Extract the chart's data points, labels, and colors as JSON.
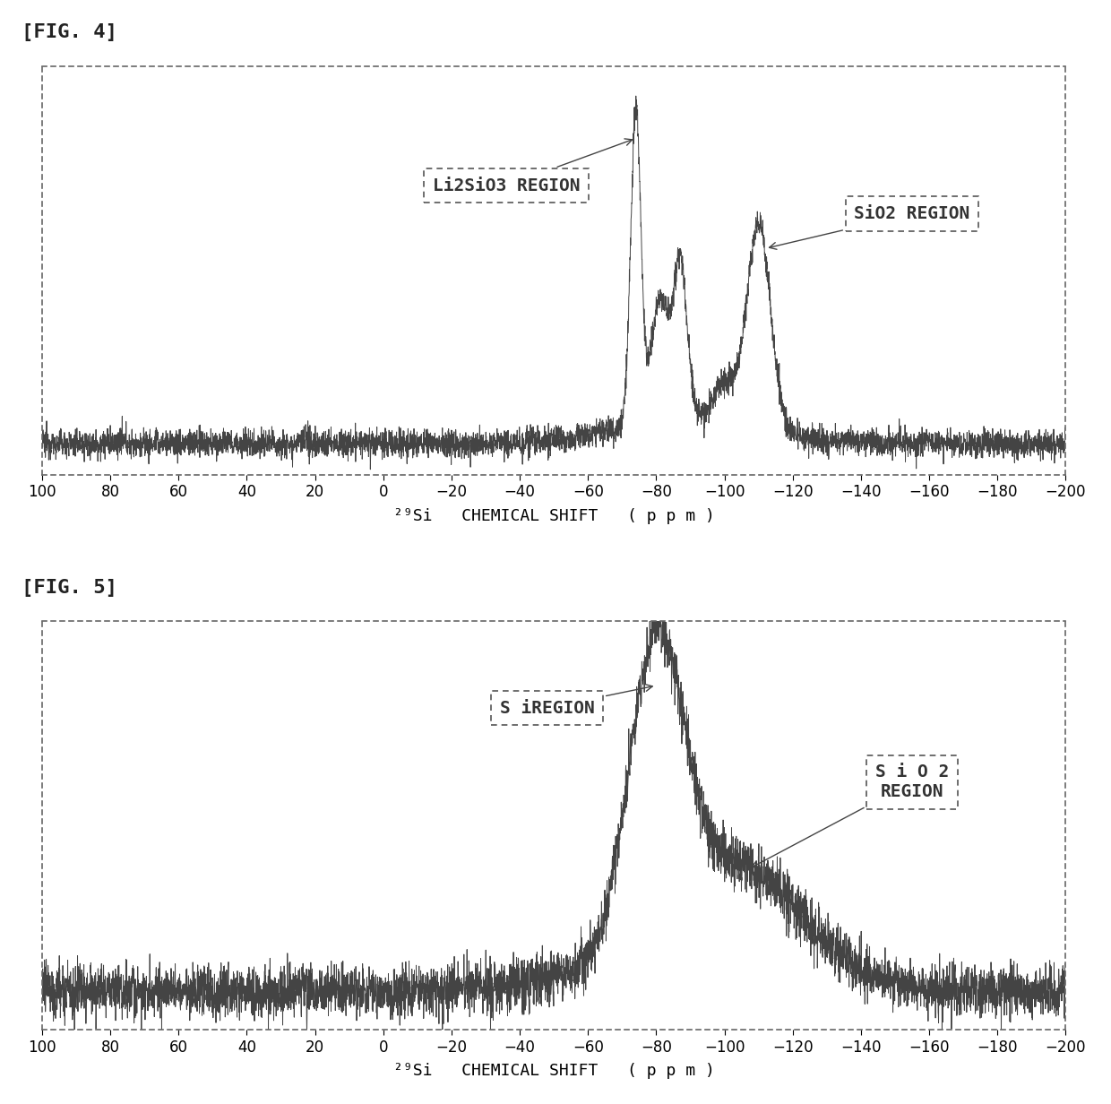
{
  "fig4_title": "[FIG. 4]",
  "fig5_title": "[FIG. 5]",
  "xlabel": "²⁹Si   CHEMICAL SHIFT   ( p p m )",
  "xmin": 100,
  "xmax": -200,
  "xticks": [
    100,
    80,
    60,
    40,
    20,
    0,
    -20,
    -40,
    -60,
    -80,
    -100,
    -120,
    -140,
    -160,
    -180,
    -200
  ],
  "fig4_annotation1_text": "Li2SiO3 REGION",
  "fig4_annotation2_text": "SiO2 REGION",
  "fig5_annotation1_text": "S iREGION",
  "fig5_annotation2_text": "S i O 2\nREGION",
  "line_color": "#444444",
  "background_color": "#ffffff",
  "title_fontsize": 16,
  "label_fontsize": 13,
  "tick_fontsize": 12
}
